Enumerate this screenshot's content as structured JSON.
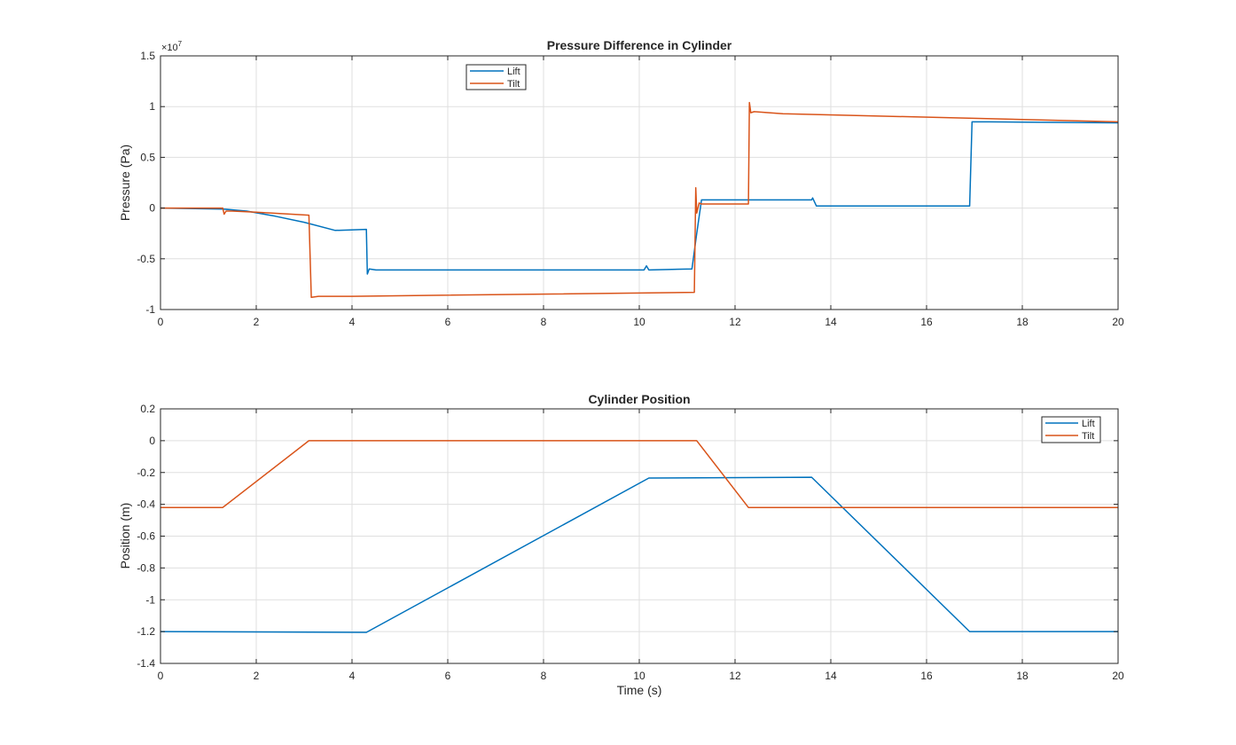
{
  "colors": {
    "lift": "#0072BD",
    "tilt": "#D95319",
    "grid": "#DFDFDF",
    "axes": "#262626"
  },
  "chart_data": [
    {
      "type": "line",
      "title": "Pressure Difference in Cylinder",
      "xlabel": "",
      "ylabel": "Pressure (Pa)",
      "xlim": [
        0,
        20
      ],
      "ylim": [
        -1,
        1.5
      ],
      "x_ticks": [
        0,
        2,
        4,
        6,
        8,
        10,
        12,
        14,
        16,
        18,
        20
      ],
      "x_tick_labels": [
        "0",
        "2",
        "4",
        "6",
        "8",
        "10",
        "12",
        "14",
        "16",
        "18",
        "20"
      ],
      "y_ticks": [
        -1,
        -0.5,
        0,
        0.5,
        1,
        1.5
      ],
      "y_tick_labels": [
        "-1",
        "-0.5",
        "0",
        "0.5",
        "1",
        "1.5"
      ],
      "y_scale_exponent": "×10",
      "y_scale_exponent_power": "7",
      "grid": true,
      "legend_placement": "top-center-left",
      "legend": [
        "Lift",
        "Tilt"
      ],
      "series": [
        {
          "name": "Lift",
          "color": "#0072BD",
          "x": [
            0,
            1.3,
            1.8,
            2.4,
            3.0,
            3.65,
            4.3,
            4.32,
            4.36,
            4.5,
            10.1,
            10.15,
            10.2,
            11.1,
            11.2,
            11.3,
            13.6,
            13.62,
            13.7,
            16.9,
            16.95,
            17.3,
            20
          ],
          "y": [
            0,
            -0.01,
            -0.03,
            -0.08,
            -0.14,
            -0.22,
            -0.21,
            -0.65,
            -0.6,
            -0.61,
            -0.61,
            -0.57,
            -0.61,
            -0.6,
            -0.25,
            0.08,
            0.08,
            0.1,
            0.02,
            0.02,
            0.85,
            0.85,
            0.84
          ]
        },
        {
          "name": "Tilt",
          "color": "#D95319",
          "x": [
            0,
            1.3,
            1.33,
            1.37,
            1.5,
            2.0,
            3.1,
            3.15,
            3.3,
            4.0,
            11.15,
            11.18,
            11.2,
            11.25,
            11.3,
            12.28,
            12.3,
            12.33,
            12.4,
            13.0,
            20
          ],
          "y": [
            0,
            0,
            -0.06,
            -0.03,
            -0.03,
            -0.04,
            -0.07,
            -0.88,
            -0.87,
            -0.87,
            -0.83,
            0.2,
            -0.05,
            0.05,
            0.04,
            0.04,
            1.04,
            0.94,
            0.95,
            0.93,
            0.85
          ]
        }
      ]
    },
    {
      "type": "line",
      "title": "Cylinder Position",
      "xlabel": "Time (s)",
      "ylabel": "Position (m)",
      "xlim": [
        0,
        20
      ],
      "ylim": [
        -1.4,
        0.2
      ],
      "x_ticks": [
        0,
        2,
        4,
        6,
        8,
        10,
        12,
        14,
        16,
        18,
        20
      ],
      "x_tick_labels": [
        "0",
        "2",
        "4",
        "6",
        "8",
        "10",
        "12",
        "14",
        "16",
        "18",
        "20"
      ],
      "y_ticks": [
        -1.4,
        -1.2,
        -1,
        -0.8,
        -0.6,
        -0.4,
        -0.2,
        0,
        0.2
      ],
      "y_tick_labels": [
        "-1.4",
        "-1.2",
        "-1",
        "-0.8",
        "-0.6",
        "-0.4",
        "-0.2",
        "0",
        "0.2"
      ],
      "grid": true,
      "legend_placement": "top-right",
      "legend": [
        "Lift",
        "Tilt"
      ],
      "series": [
        {
          "name": "Lift",
          "color": "#0072BD",
          "x": [
            0,
            4.3,
            10.2,
            13.6,
            16.9,
            20
          ],
          "y": [
            -1.2,
            -1.205,
            -0.235,
            -0.23,
            -1.2,
            -1.2
          ]
        },
        {
          "name": "Tilt",
          "color": "#D95319",
          "x": [
            0,
            1.3,
            3.1,
            11.2,
            12.28,
            20
          ],
          "y": [
            -0.42,
            -0.42,
            0,
            0,
            -0.42,
            -0.42
          ]
        }
      ]
    }
  ]
}
